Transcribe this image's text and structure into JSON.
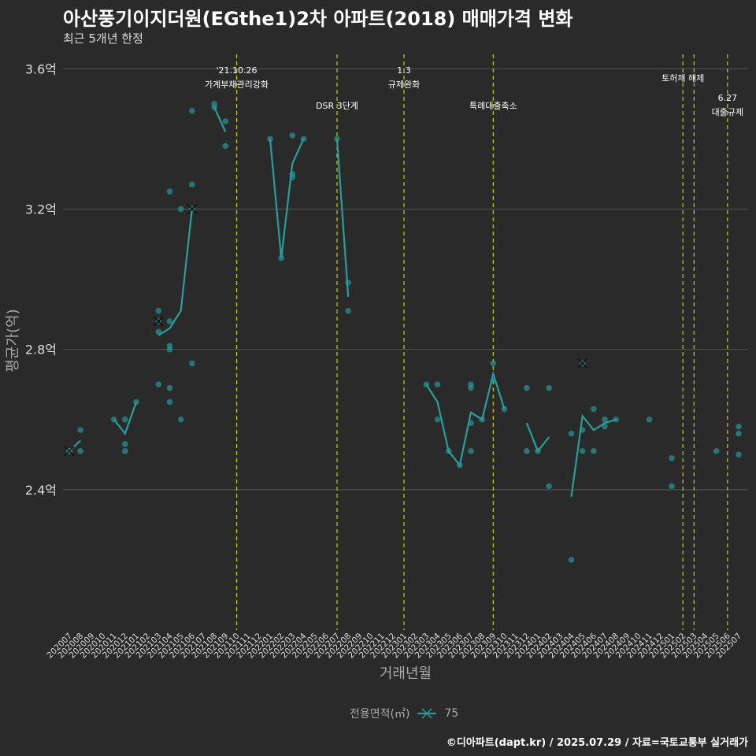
{
  "title": "아산풍기이지더원(EGthe1)2차 아파트(2018) 매매가격 변화",
  "subtitle": "최근 5개년 한정",
  "footer": "©디아파트(dapt.kr) / 2025.07.29 / 자료=국토교통부 실거래가",
  "legend": {
    "title": "전용면적(㎡)",
    "entries": [
      "75"
    ]
  },
  "colors": {
    "background": "#2a2a2a",
    "series": "#2a9d9d",
    "event_line": "#cccc00",
    "grid": "#555555"
  },
  "chart_data": {
    "type": "line",
    "xlabel": "거래년월",
    "ylabel": "평균가(억)",
    "ylim": [
      2.0,
      3.65
    ],
    "yticks": [
      2.4,
      2.8,
      3.2,
      3.6
    ],
    "ytick_labels": [
      "2.4억",
      "2.8억",
      "3.2억",
      "3.6억"
    ],
    "categories": [
      "202007",
      "202008",
      "202009",
      "202010",
      "202011",
      "202012",
      "202101",
      "202102",
      "202103",
      "202104",
      "202105",
      "202106",
      "202107",
      "202108",
      "202109",
      "202110",
      "202111",
      "202112",
      "202201",
      "202202",
      "202203",
      "202204",
      "202205",
      "202206",
      "202207",
      "202208",
      "202209",
      "202210",
      "202211",
      "202212",
      "202301",
      "202302",
      "202303",
      "202304",
      "202305",
      "202306",
      "202307",
      "202308",
      "202309",
      "202310",
      "202311",
      "202312",
      "202401",
      "202402",
      "202403",
      "202404",
      "202405",
      "202406",
      "202407",
      "202408",
      "202409",
      "202410",
      "202411",
      "202412",
      "202501",
      "202502",
      "202503",
      "202504",
      "202505",
      "202506",
      "202507"
    ],
    "series": [
      {
        "name": "75",
        "line": [
          [
            [
              "202007",
              2.51
            ],
            [
              "202008",
              2.54
            ]
          ],
          [
            [
              "202011",
              2.6
            ],
            [
              "202012",
              2.56
            ],
            [
              "202101",
              2.65
            ]
          ],
          [
            [
              "202103",
              2.84
            ],
            [
              "202104",
              2.86
            ],
            [
              "202105",
              2.91
            ],
            [
              "202106",
              3.2
            ]
          ],
          [
            [
              "202108",
              3.49
            ],
            [
              "202109",
              3.42
            ]
          ],
          [
            [
              "202201",
              3.4
            ],
            [
              "202202",
              3.06
            ],
            [
              "202203",
              3.33
            ],
            [
              "202204",
              3.4
            ]
          ],
          [
            [
              "202207",
              3.4
            ],
            [
              "202208",
              2.95
            ]
          ],
          [
            [
              "202303",
              2.7
            ],
            [
              "202304",
              2.65
            ],
            [
              "202305",
              2.51
            ],
            [
              "202306",
              2.47
            ],
            [
              "202307",
              2.62
            ],
            [
              "202308",
              2.6
            ],
            [
              "202309",
              2.73
            ],
            [
              "202310",
              2.63
            ]
          ],
          [
            [
              "202312",
              2.59
            ],
            [
              "202401",
              2.51
            ],
            [
              "202402",
              2.55
            ]
          ],
          [
            [
              "202404",
              2.38
            ],
            [
              "202405",
              2.61
            ],
            [
              "202406",
              2.57
            ],
            [
              "202407",
              2.59
            ],
            [
              "202408",
              2.6
            ]
          ]
        ],
        "points": [
          [
            "202007",
            2.51
          ],
          [
            "202007",
            2.51
          ],
          [
            "202008",
            2.57
          ],
          [
            "202008",
            2.51
          ],
          [
            "202011",
            2.6
          ],
          [
            "202012",
            2.6
          ],
          [
            "202012",
            2.53
          ],
          [
            "202012",
            2.51
          ],
          [
            "202101",
            2.65
          ],
          [
            "202103",
            2.91
          ],
          [
            "202103",
            2.88
          ],
          [
            "202103",
            2.85
          ],
          [
            "202103",
            2.7
          ],
          [
            "202104",
            3.25
          ],
          [
            "202104",
            2.88
          ],
          [
            "202104",
            2.81
          ],
          [
            "202104",
            2.8
          ],
          [
            "202104",
            2.69
          ],
          [
            "202104",
            2.65
          ],
          [
            "202105",
            3.2
          ],
          [
            "202105",
            2.6
          ],
          [
            "202106",
            3.48
          ],
          [
            "202106",
            3.27
          ],
          [
            "202106",
            3.2
          ],
          [
            "202106",
            2.76
          ],
          [
            "202108",
            3.5
          ],
          [
            "202108",
            3.49
          ],
          [
            "202109",
            3.45
          ],
          [
            "202109",
            3.38
          ],
          [
            "202201",
            3.4
          ],
          [
            "202202",
            3.06
          ],
          [
            "202203",
            3.41
          ],
          [
            "202203",
            3.3
          ],
          [
            "202203",
            3.29
          ],
          [
            "202204",
            3.4
          ],
          [
            "202207",
            3.4
          ],
          [
            "202208",
            2.99
          ],
          [
            "202208",
            2.91
          ],
          [
            "202303",
            2.7
          ],
          [
            "202304",
            2.7
          ],
          [
            "202304",
            2.6
          ],
          [
            "202305",
            2.51
          ],
          [
            "202306",
            2.47
          ],
          [
            "202307",
            2.7
          ],
          [
            "202307",
            2.69
          ],
          [
            "202307",
            2.59
          ],
          [
            "202307",
            2.51
          ],
          [
            "202308",
            2.6
          ],
          [
            "202309",
            2.76
          ],
          [
            "202309",
            2.71
          ],
          [
            "202310",
            2.63
          ],
          [
            "202312",
            2.69
          ],
          [
            "202312",
            2.51
          ],
          [
            "202401",
            2.51
          ],
          [
            "202402",
            2.69
          ],
          [
            "202402",
            2.41
          ],
          [
            "202404",
            2.56
          ],
          [
            "202404",
            2.2
          ],
          [
            "202405",
            2.76
          ],
          [
            "202405",
            2.57
          ],
          [
            "202405",
            2.51
          ],
          [
            "202406",
            2.63
          ],
          [
            "202406",
            2.51
          ],
          [
            "202407",
            2.6
          ],
          [
            "202407",
            2.58
          ],
          [
            "202408",
            2.6
          ],
          [
            "202411",
            2.6
          ],
          [
            "202501",
            2.49
          ],
          [
            "202501",
            2.41
          ],
          [
            "202505",
            2.51
          ],
          [
            "202507",
            2.58
          ],
          [
            "202507",
            2.56
          ],
          [
            "202507",
            2.5
          ]
        ],
        "crosses": [
          [
            "202007",
            2.51
          ],
          [
            "202103",
            2.88
          ],
          [
            "202106",
            3.2
          ],
          [
            "202405",
            2.76
          ]
        ]
      }
    ],
    "events": [
      {
        "label1": "'21.10.26",
        "label2": "가계부채관리강화",
        "x": "202110",
        "offset": 0
      },
      {
        "label1": "",
        "label2": "DSR 3단계",
        "x": "202207",
        "offset": 0
      },
      {
        "label1": "1.3",
        "label2": "규제완화",
        "x": "202301",
        "offset": 0
      },
      {
        "label1": "",
        "label2": "특례대출축소",
        "x": "202309",
        "offset": 0
      },
      {
        "label1": "",
        "label2": "토허제 해제",
        "x": "202502",
        "offset": 0
      },
      {
        "label1": "",
        "label2": "",
        "x": "202503",
        "offset": 0
      },
      {
        "label1": "6.27",
        "label2": "대출규제",
        "x": "202506",
        "offset": 0
      }
    ]
  }
}
